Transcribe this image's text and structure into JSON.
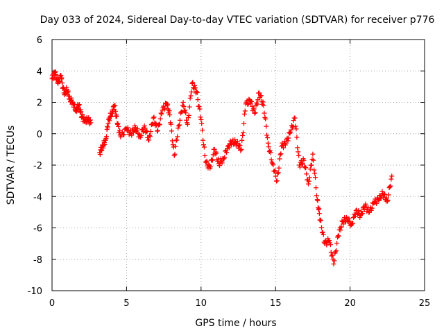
{
  "chart_data": {
    "type": "scatter",
    "title": "Day 033 of 2024, Sidereal Day-to-day VTEC variation (SDTVAR) for receiver p776",
    "xlabel": "GPS time / hours",
    "ylabel": "SDTVAR / TECUs",
    "xlim": [
      0,
      25
    ],
    "ylim": [
      -10,
      6
    ],
    "xticks": [
      0,
      5,
      10,
      15,
      20,
      25
    ],
    "yticks": [
      -10,
      -8,
      -6,
      -4,
      -2,
      0,
      2,
      4,
      6
    ],
    "grid": true,
    "marker": "+",
    "color": "#ff0000",
    "series": [
      {
        "name": "SDTVAR",
        "x": [
          0.0,
          0.2,
          0.4,
          0.6,
          0.8,
          1.0,
          1.2,
          1.4,
          1.6,
          1.8,
          2.0,
          2.2,
          2.4,
          2.6,
          3.2,
          3.4,
          3.6,
          3.8,
          4.0,
          4.2,
          4.4,
          4.6,
          5.0,
          5.3,
          5.6,
          5.9,
          6.2,
          6.5,
          6.8,
          7.1,
          7.4,
          7.7,
          7.9,
          8.2,
          8.5,
          8.8,
          9.1,
          9.4,
          9.7,
          10.0,
          10.3,
          10.6,
          10.9,
          11.2,
          11.5,
          11.8,
          12.1,
          12.4,
          12.7,
          13.0,
          13.3,
          13.6,
          13.9,
          14.2,
          14.5,
          14.8,
          15.1,
          15.4,
          15.7,
          16.0,
          16.3,
          16.6,
          16.9,
          17.2,
          17.5,
          17.8,
          18.0,
          18.3,
          18.6,
          18.9,
          19.2,
          19.5,
          19.8,
          20.1,
          20.4,
          20.7,
          21.0,
          21.3,
          21.6,
          21.9,
          22.2,
          22.5,
          22.8
        ],
        "y": [
          3.5,
          3.9,
          3.2,
          3.7,
          2.6,
          2.8,
          2.2,
          2.0,
          1.5,
          1.8,
          1.1,
          0.8,
          0.9,
          0.7,
          -1.2,
          -0.8,
          -0.4,
          0.9,
          1.3,
          1.8,
          0.6,
          -0.2,
          0.3,
          0.0,
          0.4,
          -0.2,
          0.5,
          -0.4,
          1.0,
          0.2,
          1.5,
          1.9,
          1.2,
          -1.4,
          0.5,
          2.0,
          0.6,
          3.2,
          2.7,
          0.9,
          -1.8,
          -2.2,
          -1.0,
          -1.9,
          -1.6,
          -0.8,
          -0.5,
          -0.6,
          -1.0,
          1.9,
          2.1,
          1.3,
          2.6,
          1.8,
          -0.6,
          -1.9,
          -3.0,
          -0.8,
          -0.6,
          0.1,
          1.0,
          -2.0,
          -1.7,
          -3.2,
          -1.3,
          -4.2,
          -5.5,
          -7.0,
          -6.8,
          -8.3,
          -6.5,
          -5.6,
          -5.4,
          -5.8,
          -4.9,
          -5.2,
          -4.6,
          -5.0,
          -4.4,
          -4.2,
          -3.8,
          -4.3,
          -2.7
        ]
      }
    ]
  }
}
